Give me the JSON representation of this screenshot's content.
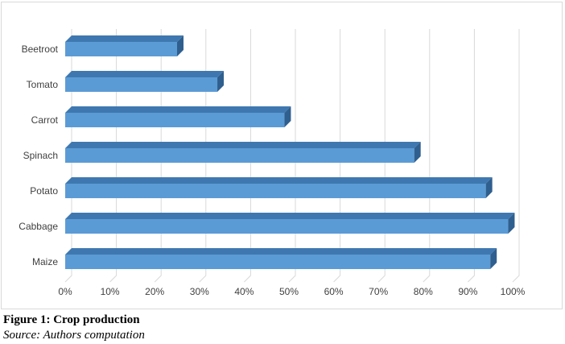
{
  "chart_data": {
    "type": "bar",
    "orientation": "horizontal",
    "categories": [
      "Beetroot",
      "Tomato",
      "Carrot",
      "Spinach",
      "Potato",
      "Cabbage",
      "Maize"
    ],
    "values": [
      25,
      34,
      49,
      78,
      94,
      99,
      95
    ],
    "unit": "%",
    "xlim": [
      0,
      100
    ],
    "xticks": [
      "0%",
      "10%",
      "20%",
      "30%",
      "40%",
      "50%",
      "60%",
      "70%",
      "80%",
      "90%",
      "100%"
    ],
    "grid": "vertical",
    "bar_color": "#5b9bd5",
    "bar_side_color": "#2f5f8f",
    "bar_top_color": "#3f78b0",
    "style": "3d"
  },
  "caption": {
    "title": "Figure 1: Crop production",
    "source": "Source: Authors computation"
  }
}
